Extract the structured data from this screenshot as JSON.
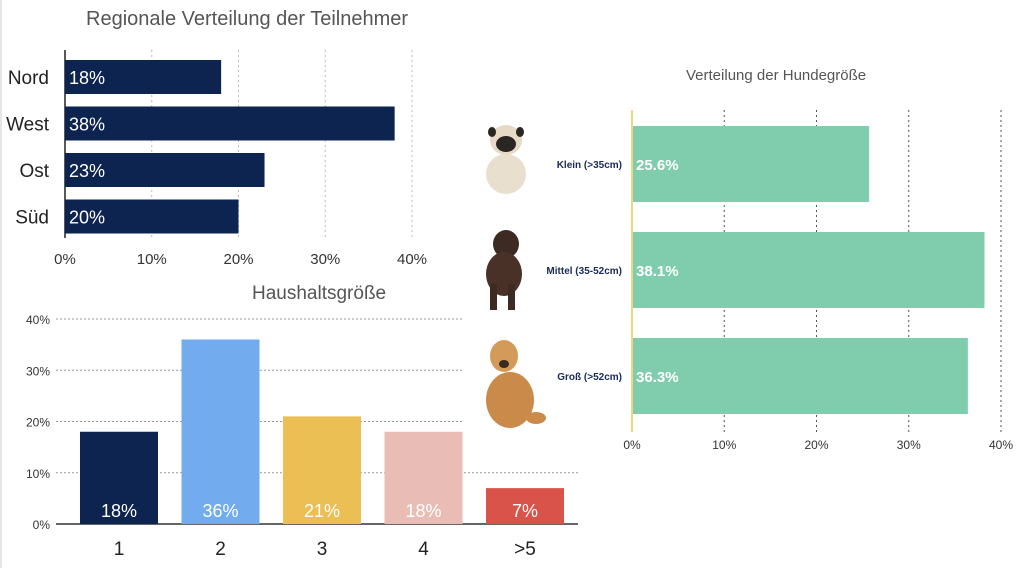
{
  "chart_data": [
    {
      "type": "bar",
      "orientation": "horizontal",
      "title": "Regionale Verteilung der Teilnehmer",
      "categories": [
        "Nord",
        "West",
        "Ost",
        "Süd"
      ],
      "values": [
        18,
        38,
        23,
        20
      ],
      "labels": [
        "18%",
        "38%",
        "23%",
        "20%"
      ],
      "xlim": [
        0,
        40
      ],
      "ticks": [
        "0%",
        "10%",
        "20%",
        "30%",
        "40%"
      ],
      "color": "#0d2350",
      "grid": true
    },
    {
      "type": "bar",
      "orientation": "vertical",
      "title": "Haushaltsgröße",
      "categories": [
        "1",
        "2",
        "3",
        "4",
        ">5"
      ],
      "values": [
        18,
        36,
        21,
        18,
        7
      ],
      "labels": [
        "18%",
        "36%",
        "21%",
        "18%",
        "7%"
      ],
      "colors": [
        "#0d2350",
        "#72abee",
        "#ecbf54",
        "#e9bdb6",
        "#d9534a"
      ],
      "ylim": [
        0,
        40
      ],
      "ticks": [
        "0%",
        "10%",
        "20%",
        "30%",
        "40%"
      ],
      "grid": true
    },
    {
      "type": "bar",
      "orientation": "horizontal",
      "title": "Verteilung der Hundegröße",
      "categories": [
        "Klein (>35cm)",
        "Mittel (35-52cm)",
        "Groß (>52cm)"
      ],
      "values": [
        25.6,
        38.1,
        36.3
      ],
      "labels": [
        "25.6%",
        "38.1%",
        "36.3%"
      ],
      "images": [
        "pug-photo",
        "brown-dog-photo",
        "golden-retriever-photo"
      ],
      "xlim": [
        0,
        40
      ],
      "ticks": [
        "0%",
        "10%",
        "20%",
        "30%",
        "40%"
      ],
      "color": "#7fcdad",
      "grid": true
    }
  ]
}
